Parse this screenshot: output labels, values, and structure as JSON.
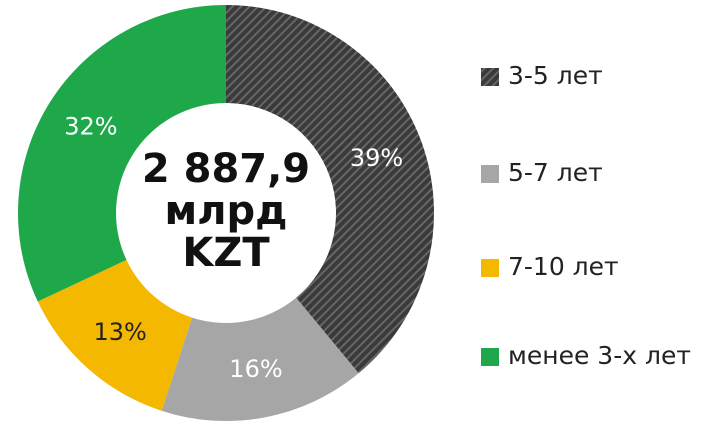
{
  "chart_data": {
    "type": "donut",
    "center_label": [
      "2 887,9",
      "млрд",
      "KZT"
    ],
    "series": [
      {
        "name": "3-5 лет",
        "color": "#3a3a3a",
        "values": [
          39
        ],
        "value_labels": [
          "39%"
        ]
      },
      {
        "name": "5-7 лет",
        "color": "#a6a6a6",
        "values": [
          16
        ],
        "value_labels": [
          "16%"
        ]
      },
      {
        "name": "7-10 лет",
        "color": "#f5b800",
        "values": [
          13
        ],
        "value_labels": [
          "13%"
        ]
      },
      {
        "name": "менее 3-х лет",
        "color": "#1fa84a",
        "values": [
          32
        ],
        "value_labels": [
          "32%"
        ]
      }
    ]
  }
}
